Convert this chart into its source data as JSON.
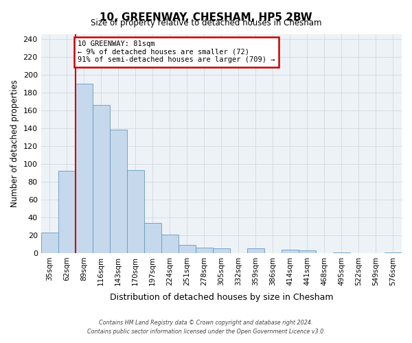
{
  "title": "10, GREENWAY, CHESHAM, HP5 2BW",
  "subtitle": "Size of property relative to detached houses in Chesham",
  "xlabel": "Distribution of detached houses by size in Chesham",
  "ylabel": "Number of detached properties",
  "bin_labels": [
    "35sqm",
    "62sqm",
    "89sqm",
    "116sqm",
    "143sqm",
    "170sqm",
    "197sqm",
    "224sqm",
    "251sqm",
    "278sqm",
    "305sqm",
    "332sqm",
    "359sqm",
    "386sqm",
    "414sqm",
    "441sqm",
    "468sqm",
    "495sqm",
    "522sqm",
    "549sqm",
    "576sqm"
  ],
  "bar_values": [
    23,
    92,
    190,
    166,
    138,
    93,
    34,
    21,
    9,
    6,
    5,
    0,
    5,
    0,
    4,
    3,
    0,
    1,
    0,
    0,
    1
  ],
  "bar_color": "#c5d8ec",
  "bar_edge_color": "#6699bb",
  "vline_index": 2,
  "vline_color": "#cc0000",
  "annotation_text": "10 GREENWAY: 81sqm\n← 9% of detached houses are smaller (72)\n91% of semi-detached houses are larger (709) →",
  "annotation_box_facecolor": "#ffffff",
  "annotation_box_edgecolor": "#cc0000",
  "ylim": [
    0,
    245
  ],
  "yticks": [
    0,
    20,
    40,
    60,
    80,
    100,
    120,
    140,
    160,
    180,
    200,
    220,
    240
  ],
  "grid_color": "#d0d8e0",
  "bg_color": "#edf2f7",
  "footer_line1": "Contains HM Land Registry data © Crown copyright and database right 2024.",
  "footer_line2": "Contains public sector information licensed under the Open Government Licence v3.0."
}
